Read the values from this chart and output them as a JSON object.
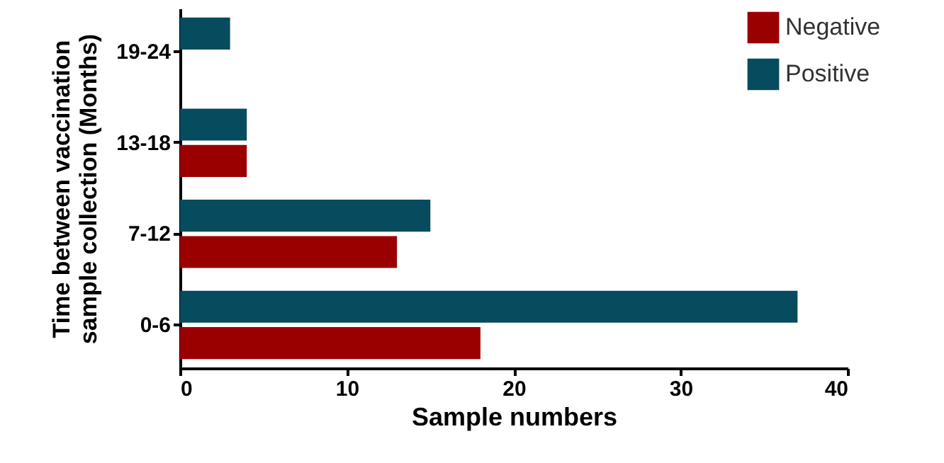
{
  "chart_data": {
    "type": "bar",
    "orientation": "horizontal",
    "categories": [
      "19-24",
      "13-18",
      "7-12",
      "0-6"
    ],
    "series": [
      {
        "name": "Negative",
        "color": "#9b0000",
        "values": [
          null,
          4,
          13,
          18
        ]
      },
      {
        "name": "Positive",
        "color": "#064b5e",
        "values": [
          3,
          4,
          15,
          37
        ]
      }
    ],
    "xlabel": "Sample numbers",
    "ylabel": "Time between vaccination\nsample collection (Months)",
    "xlim": [
      0,
      40
    ],
    "xticks": [
      0,
      10,
      20,
      30,
      40
    ],
    "legend": "top right"
  }
}
